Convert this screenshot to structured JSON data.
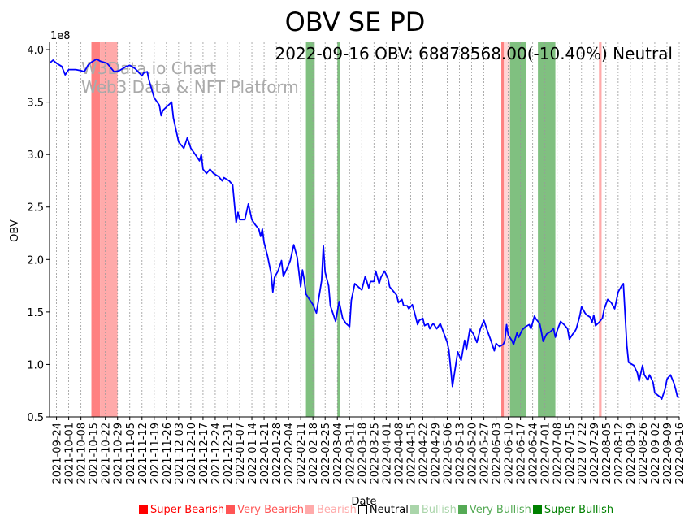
{
  "chart_data": {
    "type": "line",
    "title": "OBV SE PD",
    "annotation": "2022-09-16 OBV: 68878568.00(-10.40%) Neutral",
    "watermark": [
      "W3Data.io Chart",
      "Web3 Data & NFT Platform"
    ],
    "xlabel": "Date",
    "ylabel": "OBV",
    "y_scale_label": "1e8",
    "start_date": "2021-09-20",
    "xlim_days": [
      0,
      361
    ],
    "ylim": [
      0.5,
      4.07
    ],
    "y_ticks": [
      0.5,
      1.0,
      1.5,
      2.0,
      2.5,
      3.0,
      3.5,
      4.0
    ],
    "y_tick_labels": [
      "0.5",
      "1.0",
      "1.5",
      "2.0",
      "2.5",
      "3.0",
      "3.5",
      "4.0"
    ],
    "x_tick_days_first": 4,
    "x_tick_step_days": 7,
    "x_tick_labels": [
      "2021-09-24",
      "2021-10-01",
      "2021-10-08",
      "2021-10-15",
      "2021-10-22",
      "2021-10-29",
      "2021-11-05",
      "2021-11-12",
      "2021-11-19",
      "2021-11-26",
      "2021-12-03",
      "2021-12-10",
      "2021-12-17",
      "2021-12-24",
      "2021-12-31",
      "2022-01-07",
      "2022-01-14",
      "2022-01-21",
      "2022-01-28",
      "2022-02-04",
      "2022-02-11",
      "2022-02-18",
      "2022-02-25",
      "2022-03-04",
      "2022-03-11",
      "2022-03-18",
      "2022-03-25",
      "2022-04-01",
      "2022-04-08",
      "2022-04-15",
      "2022-04-22",
      "2022-04-29",
      "2022-05-06",
      "2022-05-13",
      "2022-05-20",
      "2022-05-27",
      "2022-06-03",
      "2022-06-10",
      "2022-06-17",
      "2022-06-24",
      "2022-07-01",
      "2022-07-08",
      "2022-07-15",
      "2022-07-22",
      "2022-07-29",
      "2022-08-05",
      "2022-08-12",
      "2022-08-19",
      "2022-08-26",
      "2022-09-02",
      "2022-09-09",
      "2022-09-16"
    ],
    "series": [
      {
        "name": "OBV",
        "color": "#0000ff",
        "x_days": [
          0,
          2,
          4,
          7,
          9,
          11,
          15,
          18,
          20,
          22,
          24,
          27,
          29,
          33,
          37,
          40,
          44,
          46,
          49,
          53,
          54,
          56,
          57,
          60,
          63,
          64,
          65,
          70,
          71,
          74,
          77,
          79,
          81,
          84,
          86,
          87,
          88,
          90,
          92,
          94,
          97,
          99,
          100,
          103,
          105,
          107,
          108,
          109,
          112,
          114,
          116,
          118,
          120,
          121,
          122,
          123,
          125,
          127,
          128,
          129,
          131,
          133,
          134,
          136,
          138,
          140,
          142,
          144,
          145,
          146,
          147,
          149,
          151,
          153,
          156,
          157,
          158,
          160,
          161,
          164,
          166,
          168,
          170,
          172,
          173,
          175,
          177,
          179,
          181,
          183,
          184,
          186,
          187,
          189,
          190,
          192,
          194,
          195,
          197,
          199,
          200,
          202,
          203,
          205,
          206,
          208,
          209,
          211,
          212,
          214,
          215,
          217,
          218,
          219,
          220,
          222,
          224,
          228,
          229,
          231,
          234,
          236,
          238,
          239,
          241,
          243,
          245,
          247,
          249,
          251,
          253,
          255,
          256,
          258,
          260,
          261,
          262,
          263,
          265,
          266,
          268,
          269,
          271,
          273,
          275,
          276,
          278,
          279,
          281,
          282,
          283,
          285,
          287,
          289,
          290,
          291,
          293,
          295,
          297,
          298,
          300,
          301,
          302,
          304,
          305,
          307,
          308,
          310,
          311,
          312,
          313,
          315,
          317,
          318,
          320,
          322,
          324,
          326,
          328,
          329,
          330,
          331,
          332,
          335,
          337,
          338,
          340,
          341,
          343,
          344,
          346,
          347,
          350,
          351,
          353,
          354,
          356,
          358,
          359,
          360,
          361
        ],
        "values": [
          3.87,
          3.9,
          3.87,
          3.84,
          3.76,
          3.81,
          3.81,
          3.8,
          3.79,
          3.85,
          3.88,
          3.91,
          3.89,
          3.87,
          3.79,
          3.8,
          3.84,
          3.85,
          3.82,
          3.75,
          3.78,
          3.79,
          3.71,
          3.54,
          3.47,
          3.37,
          3.42,
          3.5,
          3.35,
          3.12,
          3.06,
          3.16,
          3.06,
          2.99,
          2.94,
          3.0,
          2.86,
          2.82,
          2.86,
          2.82,
          2.79,
          2.75,
          2.78,
          2.75,
          2.71,
          2.35,
          2.45,
          2.38,
          2.38,
          2.53,
          2.38,
          2.33,
          2.29,
          2.22,
          2.29,
          2.16,
          2.03,
          1.87,
          1.69,
          1.83,
          1.89,
          1.99,
          1.84,
          1.91,
          1.99,
          2.14,
          2.02,
          1.74,
          1.9,
          1.81,
          1.67,
          1.62,
          1.57,
          1.49,
          1.8,
          2.13,
          1.88,
          1.75,
          1.56,
          1.41,
          1.6,
          1.44,
          1.39,
          1.36,
          1.61,
          1.77,
          1.74,
          1.71,
          1.84,
          1.73,
          1.79,
          1.79,
          1.89,
          1.77,
          1.83,
          1.89,
          1.82,
          1.74,
          1.7,
          1.66,
          1.59,
          1.62,
          1.56,
          1.56,
          1.53,
          1.57,
          1.51,
          1.38,
          1.42,
          1.44,
          1.37,
          1.39,
          1.34,
          1.37,
          1.39,
          1.34,
          1.39,
          1.21,
          1.13,
          0.79,
          1.12,
          1.04,
          1.23,
          1.14,
          1.34,
          1.29,
          1.21,
          1.34,
          1.42,
          1.32,
          1.23,
          1.13,
          1.2,
          1.17,
          1.19,
          1.22,
          1.38,
          1.28,
          1.23,
          1.19,
          1.3,
          1.26,
          1.33,
          1.36,
          1.38,
          1.34,
          1.46,
          1.43,
          1.39,
          1.31,
          1.22,
          1.29,
          1.31,
          1.34,
          1.26,
          1.32,
          1.41,
          1.38,
          1.34,
          1.24,
          1.29,
          1.31,
          1.34,
          1.46,
          1.55,
          1.49,
          1.47,
          1.45,
          1.4,
          1.47,
          1.37,
          1.4,
          1.44,
          1.53,
          1.62,
          1.59,
          1.53,
          1.69,
          1.75,
          1.77,
          1.48,
          1.18,
          1.02,
          0.99,
          0.92,
          0.84,
          0.99,
          0.9,
          0.85,
          0.9,
          0.83,
          0.73,
          0.69,
          0.67,
          0.77,
          0.86,
          0.9,
          0.82,
          0.76,
          0.69,
          0.69
        ]
      }
    ],
    "bands": [
      {
        "from_day": 24,
        "to_day": 29,
        "signal": "Very Bearish",
        "color": "#ff8080"
      },
      {
        "from_day": 29,
        "to_day": 39,
        "signal": "Bearish",
        "color": "#ffaaaa"
      },
      {
        "from_day": 147,
        "to_day": 152,
        "signal": "Very Bullish",
        "color": "#80c080"
      },
      {
        "from_day": 165,
        "to_day": 166.5,
        "signal": "Very Bullish",
        "color": "#80c080"
      },
      {
        "from_day": 259,
        "to_day": 260.5,
        "signal": "Very Bearish",
        "color": "#ff8080"
      },
      {
        "from_day": 260.5,
        "to_day": 264,
        "signal": "Bearish",
        "color": "#ffd5d5"
      },
      {
        "from_day": 264,
        "to_day": 273,
        "signal": "Very Bullish",
        "color": "#80c080"
      },
      {
        "from_day": 280,
        "to_day": 290,
        "signal": "Very Bullish",
        "color": "#80c080"
      },
      {
        "from_day": 315,
        "to_day": 316.5,
        "signal": "Bearish",
        "color": "#ffaaaa"
      }
    ],
    "legend": {
      "placement": "bottom",
      "items": [
        {
          "label": "Super Bearish",
          "color": "#ff0000",
          "text_color": "#ff0000"
        },
        {
          "label": "Very Bearish",
          "color": "#ff5555",
          "text_color": "#ff5555"
        },
        {
          "label": "Bearish",
          "color": "#ffaaaa",
          "text_color": "#ffaaaa"
        },
        {
          "label": "Neutral",
          "color": "#ffffff",
          "text_color": "#000000"
        },
        {
          "label": "Bullish",
          "color": "#aad5aa",
          "text_color": "#aad5aa"
        },
        {
          "label": "Very Bullish",
          "color": "#55aa55",
          "text_color": "#55aa55"
        },
        {
          "label": "Super Bullish",
          "color": "#008000",
          "text_color": "#008000"
        }
      ]
    }
  }
}
